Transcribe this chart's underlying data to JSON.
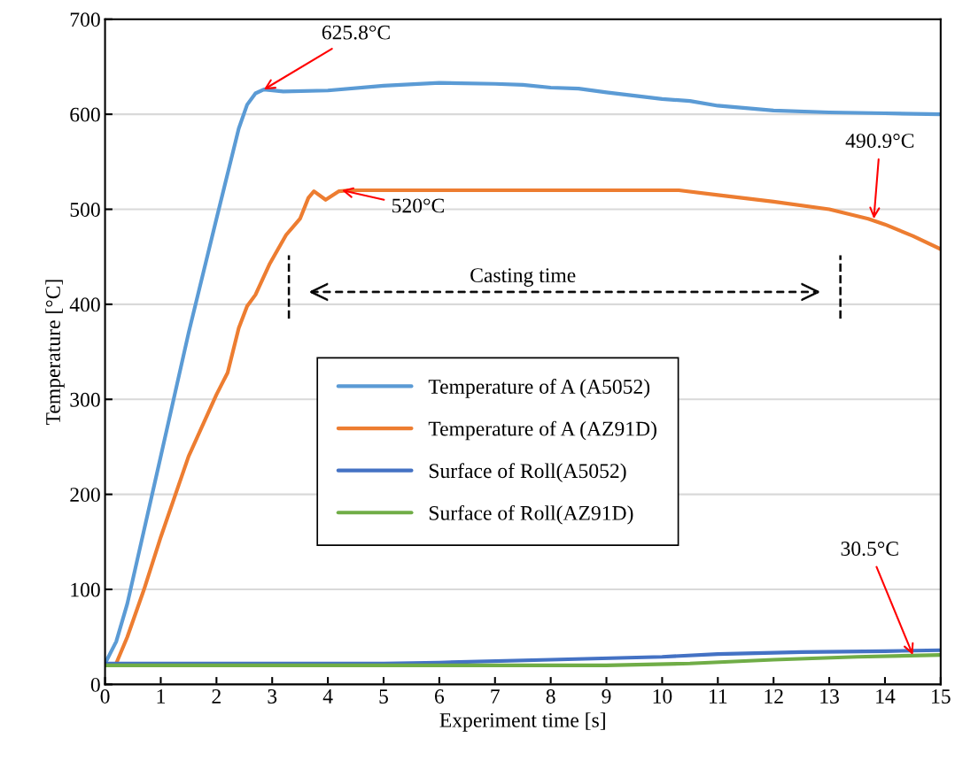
{
  "chart_data": {
    "type": "line",
    "xlabel": "Experiment time [s]",
    "ylabel": "Temperature [°C]",
    "xlim": [
      0,
      15
    ],
    "xticks": [
      0,
      1,
      2,
      3,
      4,
      5,
      6,
      7,
      8,
      9,
      10,
      11,
      12,
      13,
      14,
      15
    ],
    "ylim": [
      0,
      700
    ],
    "yticks": [
      0,
      100,
      200,
      300,
      400,
      500,
      600,
      700
    ],
    "grid": "y",
    "legend": "center",
    "marker": "none",
    "line_style": "solid",
    "series": [
      {
        "name": "Temperature of A (A5052)",
        "color": "#5b9bd5",
        "x": [
          0,
          0.2,
          0.4,
          1,
          1.5,
          2,
          2.4,
          2.55,
          2.7,
          2.85,
          3.2,
          4,
          5,
          6,
          7,
          7.5,
          8,
          8.5,
          9,
          10,
          10.5,
          11,
          12,
          13,
          14,
          15
        ],
        "values": [
          22,
          45,
          85,
          240,
          370,
          490,
          585,
          610,
          622,
          626,
          624,
          625,
          630,
          633,
          632,
          631,
          628,
          627,
          623,
          616,
          614,
          609,
          604,
          602,
          601,
          600
        ]
      },
      {
        "name": "Temperature of A (AZ91D)",
        "color": "#ed7d31",
        "x": [
          0,
          0.2,
          0.4,
          0.7,
          1,
          1.5,
          2,
          2.2,
          2.4,
          2.55,
          2.7,
          2.95,
          3.25,
          3.5,
          3.65,
          3.75,
          3.96,
          4.2,
          4.4,
          10.3,
          11,
          12,
          13,
          13.7,
          14,
          14.5,
          15
        ],
        "values": [
          20,
          22,
          50,
          100,
          155,
          240,
          305,
          328,
          375,
          398,
          410,
          442,
          473,
          490,
          512,
          519,
          510,
          519,
          520,
          520,
          515,
          508,
          500,
          490,
          484,
          472,
          458
        ]
      },
      {
        "name": "Surface of Roll(A5052)",
        "color": "#4472c4",
        "x": [
          0,
          5,
          6,
          8,
          10,
          11,
          12.5,
          14,
          15
        ],
        "values": [
          22,
          22,
          23,
          26,
          29,
          32,
          34,
          35,
          36
        ]
      },
      {
        "name": "Surface of Roll(AZ91D)",
        "color": "#70ad47",
        "x": [
          0,
          9,
          10.5,
          12,
          13.5,
          15
        ],
        "values": [
          20,
          20,
          22,
          26,
          29,
          31
        ]
      }
    ],
    "annotations": [
      {
        "text": "625.8°C",
        "x": 2.85,
        "y": 626
      },
      {
        "text": "520°C",
        "x": 4.25,
        "y": 520
      },
      {
        "text": "490.9°C",
        "x": 13.8,
        "y": 490
      },
      {
        "text": "30.5°C",
        "x": 14.5,
        "y": 31
      },
      "Casting time"
    ],
    "ref_lines": [
      {
        "axis": "x",
        "value": 3.3,
        "color": "#000000",
        "line_style": "dashed"
      },
      {
        "axis": "x",
        "value": 13.2,
        "color": "#000000",
        "line_style": "dashed"
      }
    ]
  }
}
